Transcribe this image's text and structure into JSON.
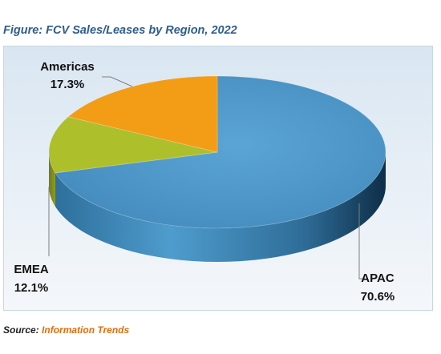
{
  "figure_title": "Figure: FCV Sales/Leases by Region, 2022",
  "source": {
    "label": "Source:",
    "value": "Information Trends"
  },
  "colors": {
    "APAC": "#4b97c9",
    "EMEA": "#aebf2c",
    "Americas": "#f39c16",
    "background": "#dde8f2"
  },
  "chart_data": {
    "type": "pie",
    "style": "3d",
    "slices": [
      {
        "name": "APAC",
        "value": 70.6,
        "label": "APAC",
        "value_label": "70.6%"
      },
      {
        "name": "EMEA",
        "value": 12.1,
        "label": "EMEA",
        "value_label": "12.1%"
      },
      {
        "name": "Americas",
        "value": 17.3,
        "label": "Americas",
        "value_label": "17.3%"
      }
    ]
  }
}
